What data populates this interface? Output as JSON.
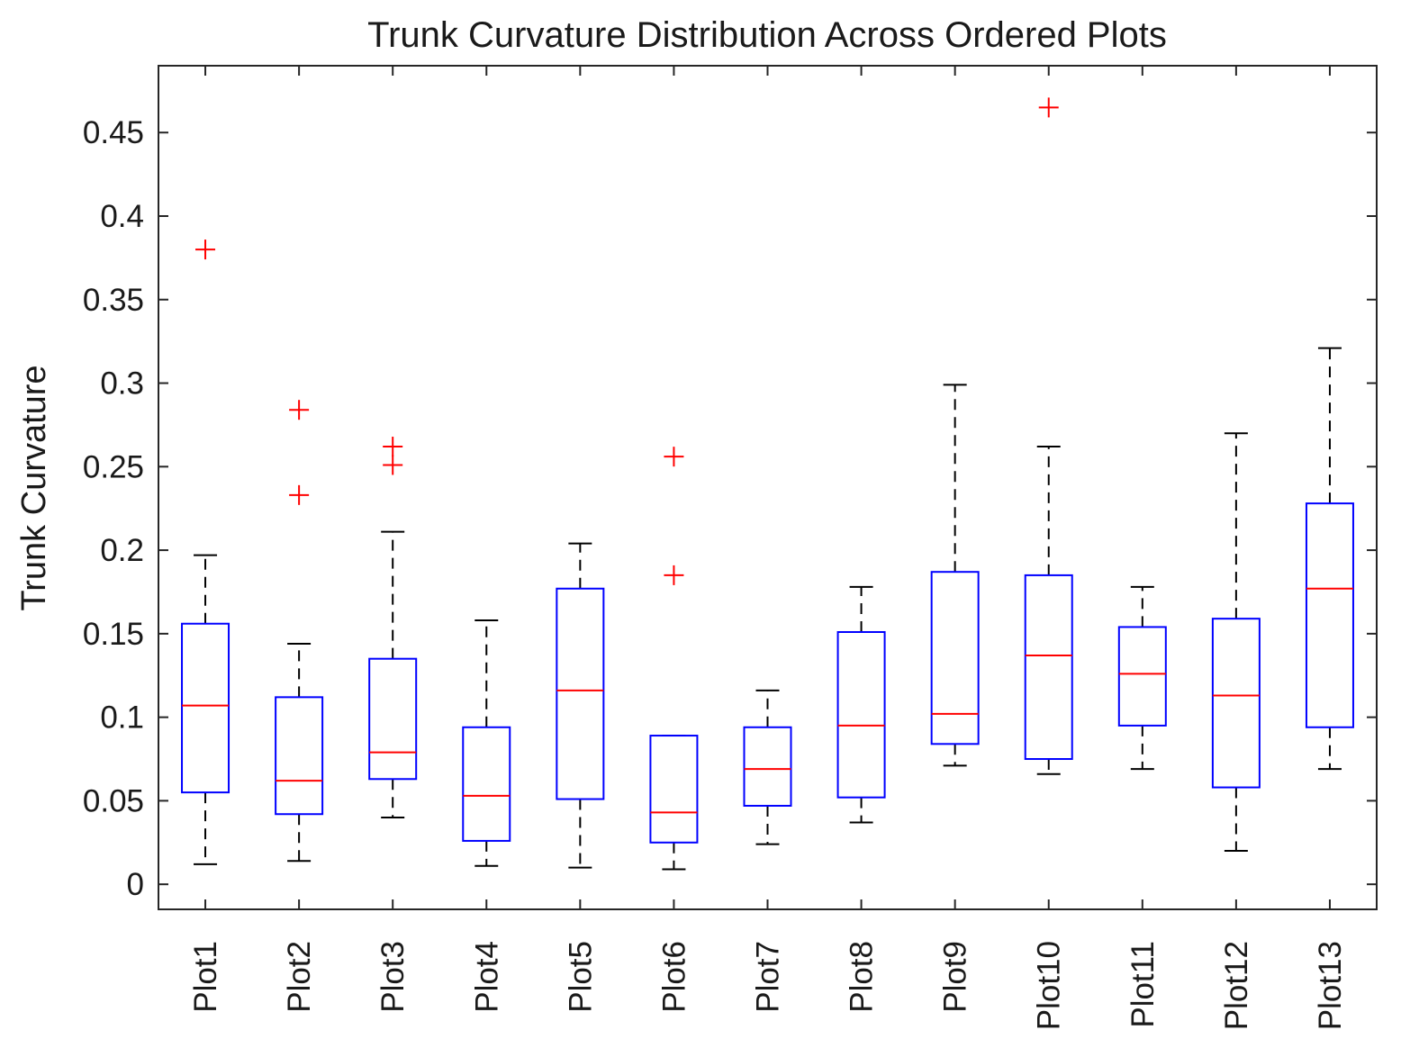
{
  "chart_data": {
    "type": "boxplot",
    "title": "Trunk Curvature Distribution Across Ordered Plots",
    "xlabel": "",
    "ylabel": "Trunk Curvature",
    "ylim": [
      -0.015,
      0.49
    ],
    "yticks": [
      0,
      0.05,
      0.1,
      0.15,
      0.2,
      0.25,
      0.3,
      0.35,
      0.4,
      0.45
    ],
    "ytick_labels": [
      "0",
      "0.05",
      "0.1",
      "0.15",
      "0.2",
      "0.25",
      "0.3",
      "0.35",
      "0.4",
      "0.45"
    ],
    "grid": false,
    "colors": {
      "box": "#0000ff",
      "median": "#ff0000",
      "whisker": "#000000",
      "outlier": "#ff0000",
      "axes": "#262626"
    },
    "categories": [
      "Plot1",
      "Plot2",
      "Plot3",
      "Plot4",
      "Plot5",
      "Plot6",
      "Plot7",
      "Plot8",
      "Plot9",
      "Plot10",
      "Plot11",
      "Plot12",
      "Plot13"
    ],
    "boxes": [
      {
        "name": "Plot1",
        "whisker_low": 0.012,
        "q1": 0.055,
        "median": 0.107,
        "q3": 0.156,
        "whisker_high": 0.197,
        "outliers": [
          0.38
        ]
      },
      {
        "name": "Plot2",
        "whisker_low": 0.014,
        "q1": 0.042,
        "median": 0.062,
        "q3": 0.112,
        "whisker_high": 0.144,
        "outliers": [
          0.284,
          0.233
        ]
      },
      {
        "name": "Plot3",
        "whisker_low": 0.04,
        "q1": 0.063,
        "median": 0.079,
        "q3": 0.135,
        "whisker_high": 0.211,
        "outliers": [
          0.262,
          0.251
        ]
      },
      {
        "name": "Plot4",
        "whisker_low": 0.011,
        "q1": 0.026,
        "median": 0.053,
        "q3": 0.094,
        "whisker_high": 0.158,
        "outliers": []
      },
      {
        "name": "Plot5",
        "whisker_low": 0.01,
        "q1": 0.051,
        "median": 0.116,
        "q3": 0.177,
        "whisker_high": 0.204,
        "outliers": []
      },
      {
        "name": "Plot6",
        "whisker_low": 0.009,
        "q1": 0.025,
        "median": 0.043,
        "q3": 0.089,
        "whisker_high": 0.089,
        "outliers": [
          0.256,
          0.185
        ]
      },
      {
        "name": "Plot7",
        "whisker_low": 0.024,
        "q1": 0.047,
        "median": 0.069,
        "q3": 0.094,
        "whisker_high": 0.116,
        "outliers": []
      },
      {
        "name": "Plot8",
        "whisker_low": 0.037,
        "q1": 0.052,
        "median": 0.095,
        "q3": 0.151,
        "whisker_high": 0.178,
        "outliers": []
      },
      {
        "name": "Plot9",
        "whisker_low": 0.071,
        "q1": 0.084,
        "median": 0.102,
        "q3": 0.187,
        "whisker_high": 0.299,
        "outliers": []
      },
      {
        "name": "Plot10",
        "whisker_low": 0.066,
        "q1": 0.075,
        "median": 0.137,
        "q3": 0.185,
        "whisker_high": 0.262,
        "outliers": [
          0.465
        ]
      },
      {
        "name": "Plot11",
        "whisker_low": 0.069,
        "q1": 0.095,
        "median": 0.126,
        "q3": 0.154,
        "whisker_high": 0.178,
        "outliers": []
      },
      {
        "name": "Plot12",
        "whisker_low": 0.02,
        "q1": 0.058,
        "median": 0.113,
        "q3": 0.159,
        "whisker_high": 0.27,
        "outliers": []
      },
      {
        "name": "Plot13",
        "whisker_low": 0.069,
        "q1": 0.094,
        "median": 0.177,
        "q3": 0.228,
        "whisker_high": 0.321,
        "outliers": []
      }
    ]
  }
}
